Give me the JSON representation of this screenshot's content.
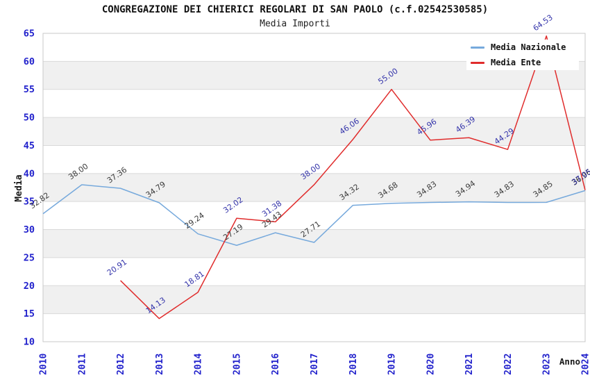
{
  "chart_data": {
    "type": "line",
    "title": "CONGREGAZIONE DEI CHIERICI REGOLARI DI SAN PAOLO (c.f.02542530585)",
    "subtitle": "Media Importi",
    "xlabel": "Anno",
    "ylabel": "Media",
    "ylim": [
      10,
      65
    ],
    "yticks": [
      10,
      15,
      20,
      25,
      30,
      35,
      40,
      45,
      50,
      55,
      60,
      65
    ],
    "categories": [
      "2010",
      "2011",
      "2012",
      "2013",
      "2014",
      "2015",
      "2016",
      "2017",
      "2018",
      "2019",
      "2020",
      "2021",
      "2022",
      "2023",
      "2024"
    ],
    "grid": true,
    "legend_position": "top-right",
    "band_color": "#f0f0f0",
    "gridline_color": "#d9d9d9",
    "border_color": "#c9c9c9",
    "axis_tick_color": "#2222cc",
    "axis_title_color": "#1a1a1a",
    "series": [
      {
        "name": "Media Nazionale",
        "color": "#76a9dc",
        "label_color": "#3c3c3c",
        "values": [
          32.82,
          38.0,
          37.36,
          34.79,
          29.24,
          27.19,
          29.43,
          27.71,
          34.32,
          34.68,
          34.83,
          34.94,
          34.83,
          34.85,
          36.96
        ]
      },
      {
        "name": "Media Ente",
        "color": "#e02c2c",
        "label_color": "#3434aa",
        "values": [
          null,
          null,
          20.91,
          14.13,
          18.81,
          32.02,
          31.38,
          38.0,
          46.06,
          55.0,
          45.96,
          46.39,
          44.29,
          64.53,
          37.05
        ]
      }
    ]
  }
}
